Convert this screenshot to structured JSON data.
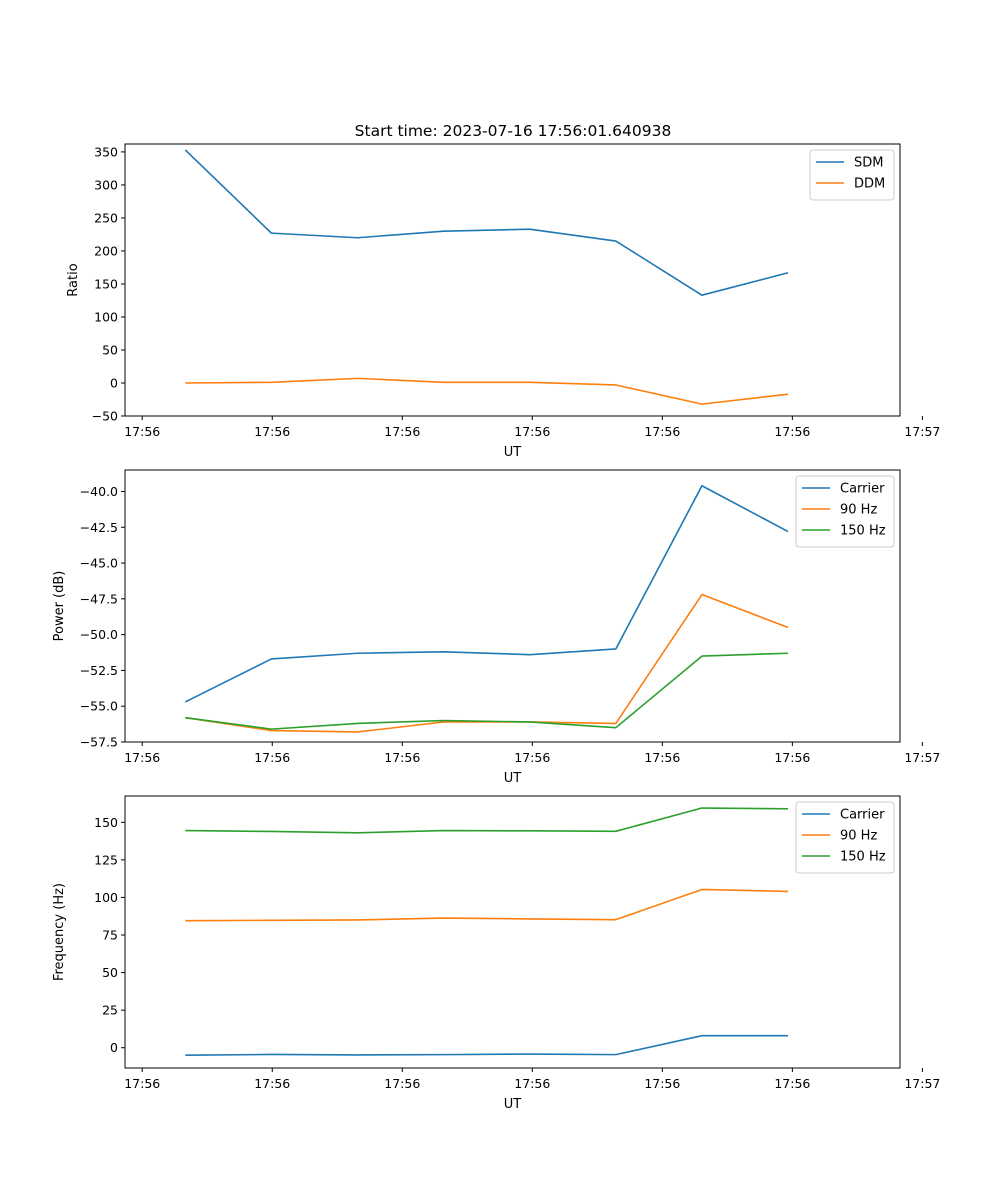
{
  "figure": {
    "title": "Start time: 2023-07-16 17:56:01.640938"
  },
  "colors": {
    "blue": "#1f77b4",
    "orange": "#ff7f0e",
    "green": "#2ca02c"
  },
  "chart_data": [
    {
      "type": "line",
      "title": "Start time: 2023-07-16 17:56:01.640938",
      "xlabel": "UT",
      "ylabel": "Ratio",
      "x_tick_labels": [
        "17:56",
        "17:56",
        "17:56",
        "17:56",
        "17:56",
        "17:56",
        "17:57"
      ],
      "x": [
        1,
        2,
        3,
        4,
        5,
        6,
        7,
        8
      ],
      "xlim": [
        0.3,
        9.3
      ],
      "ylim": [
        -50,
        362
      ],
      "yticks": [
        -50,
        0,
        50,
        100,
        150,
        200,
        250,
        300,
        350
      ],
      "ytick_labels": [
        "−50",
        "0",
        "50",
        "100",
        "150",
        "200",
        "250",
        "300",
        "350"
      ],
      "legend": "top-right",
      "series": [
        {
          "name": "SDM",
          "color": "#1f77b4",
          "values": [
            353,
            227,
            220,
            230,
            233,
            215,
            133,
            167
          ]
        },
        {
          "name": "DDM",
          "color": "#ff7f0e",
          "values": [
            0,
            1,
            7,
            1,
            1,
            -3,
            -32,
            -17
          ]
        }
      ]
    },
    {
      "type": "line",
      "xlabel": "UT",
      "ylabel": "Power (dB)",
      "x_tick_labels": [
        "17:56",
        "17:56",
        "17:56",
        "17:56",
        "17:56",
        "17:56",
        "17:57"
      ],
      "x": [
        1,
        2,
        3,
        4,
        5,
        6,
        7,
        8
      ],
      "xlim": [
        0.3,
        9.3
      ],
      "ylim": [
        -57.5,
        -38.5
      ],
      "yticks": [
        -57.5,
        -55.0,
        -52.5,
        -50.0,
        -47.5,
        -45.0,
        -42.5,
        -40.0
      ],
      "ytick_labels": [
        "−57.5",
        "−55.0",
        "−52.5",
        "−50.0",
        "−47.5",
        "−45.0",
        "−42.5",
        "−40.0"
      ],
      "legend": "top-right",
      "series": [
        {
          "name": "Carrier",
          "color": "#1f77b4",
          "values": [
            -54.7,
            -51.7,
            -51.3,
            -51.2,
            -51.4,
            -51.0,
            -39.6,
            -42.8
          ]
        },
        {
          "name": "90 Hz",
          "color": "#ff7f0e",
          "values": [
            -55.8,
            -56.7,
            -56.8,
            -56.1,
            -56.1,
            -56.2,
            -47.2,
            -49.5
          ]
        },
        {
          "name": "150 Hz",
          "color": "#2ca02c",
          "values": [
            -55.8,
            -56.6,
            -56.2,
            -56.0,
            -56.1,
            -56.5,
            -51.5,
            -51.3
          ]
        }
      ]
    },
    {
      "type": "line",
      "xlabel": "UT",
      "ylabel": "Frequency (Hz)",
      "x_tick_labels": [
        "17:56",
        "17:56",
        "17:56",
        "17:56",
        "17:56",
        "17:56",
        "17:57"
      ],
      "x": [
        1,
        2,
        3,
        4,
        5,
        6,
        7,
        8
      ],
      "xlim": [
        0.3,
        9.3
      ],
      "ylim": [
        -13.5,
        167.5
      ],
      "yticks": [
        0,
        25,
        50,
        75,
        100,
        125,
        150
      ],
      "ytick_labels": [
        "0",
        "25",
        "50",
        "75",
        "100",
        "125",
        "150"
      ],
      "legend": "top-right",
      "series": [
        {
          "name": "Carrier",
          "color": "#1f77b4",
          "values": [
            -5,
            -4.5,
            -4.8,
            -4.6,
            -4.2,
            -4.6,
            8,
            8
          ]
        },
        {
          "name": "90 Hz",
          "color": "#ff7f0e",
          "values": [
            84.5,
            84.8,
            85,
            86.3,
            85.7,
            85.2,
            105.3,
            104
          ]
        },
        {
          "name": "150 Hz",
          "color": "#2ca02c",
          "values": [
            144.5,
            143.9,
            143,
            144.5,
            144.3,
            144,
            159.5,
            159
          ]
        }
      ]
    }
  ]
}
